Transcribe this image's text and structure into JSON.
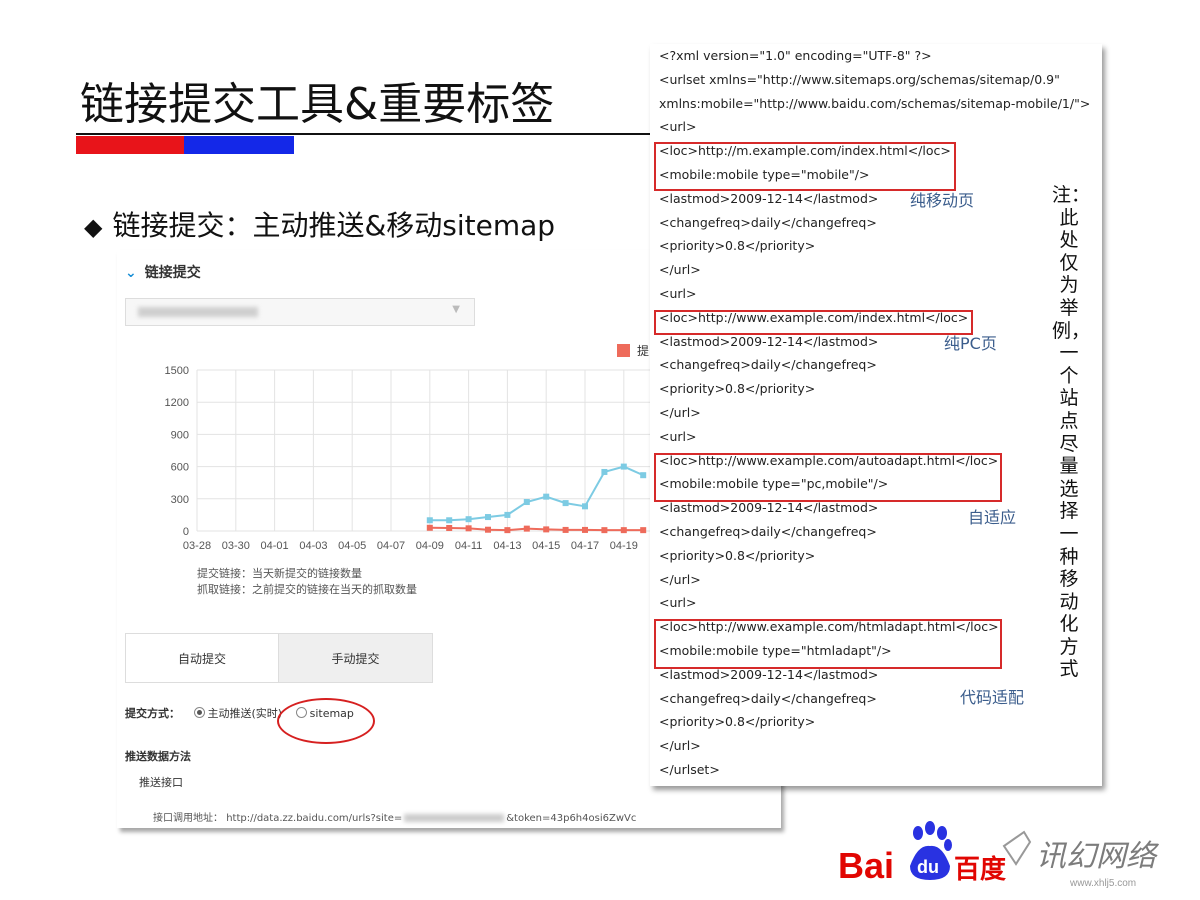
{
  "slide": {
    "title": "链接提交工具&重要标签",
    "bullet_mark": "◆",
    "bullet": "链接提交：主动推送&移动sitemap"
  },
  "panel": {
    "title": "链接提交",
    "legend_label": "提",
    "notes": [
      "提交链接：当天新提交的链接数量",
      "抓取链接：之前提交的链接在当天的抓取数量"
    ],
    "tabs": [
      "自动提交",
      "手动提交"
    ],
    "method_label": "提交方式：",
    "option_push": "主动推送(实时)",
    "option_sitemap": "sitemap",
    "push_method": "推送数据方法",
    "push_api": "推送接口",
    "api_label": "接口调用地址：",
    "api_prefix": "http://data.zz.baidu.com/urls?site=",
    "api_suffix": "&token=43p6h4osi6ZwVc"
  },
  "chart_data": {
    "type": "line",
    "categories": [
      "03-28",
      "03-29",
      "03-30",
      "03-31",
      "04-01",
      "04-02",
      "04-03",
      "04-04",
      "04-05",
      "04-06",
      "04-07",
      "04-08",
      "04-09",
      "04-10",
      "04-11",
      "04-12",
      "04-13",
      "04-14",
      "04-15",
      "04-16",
      "04-17",
      "04-18",
      "04-19",
      "04-20"
    ],
    "tick_labels": [
      "03-28",
      "03-30",
      "04-01",
      "04-03",
      "04-05",
      "04-07",
      "04-09",
      "04-11",
      "04-13",
      "04-15",
      "04-17",
      "04-19"
    ],
    "y_ticks": [
      "0",
      "300",
      "600",
      "900",
      "1200",
      "1500"
    ],
    "ylim": [
      0,
      1500
    ],
    "series": [
      {
        "name": "提交链接",
        "color": "#7dcbe3",
        "values": [
          null,
          null,
          null,
          null,
          null,
          null,
          null,
          null,
          null,
          null,
          null,
          null,
          100,
          100,
          110,
          130,
          150,
          270,
          320,
          260,
          230,
          550,
          600,
          520
        ]
      },
      {
        "name": "抓取链接",
        "color": "#ee6b5b",
        "values": [
          null,
          null,
          null,
          null,
          null,
          null,
          null,
          null,
          null,
          null,
          null,
          null,
          30,
          28,
          25,
          12,
          8,
          22,
          15,
          10,
          10,
          8,
          8,
          8
        ]
      }
    ]
  },
  "xml": {
    "lines": [
      "<?xml version=\"1.0\" encoding=\"UTF-8\" ?>",
      "<urlset xmlns=\"http://www.sitemaps.org/schemas/sitemap/0.9\"",
      "xmlns:mobile=\"http://www.baidu.com/schemas/sitemap-mobile/1/\">",
      "<url>",
      "<loc>http://m.example.com/index.html</loc>",
      "<mobile:mobile type=\"mobile\"/>",
      "<lastmod>2009-12-14</lastmod>",
      "<changefreq>daily</changefreq>",
      "<priority>0.8</priority>",
      "</url>",
      "<url>",
      "<loc>http://www.example.com/index.html</loc>",
      "<lastmod>2009-12-14</lastmod>",
      "<changefreq>daily</changefreq>",
      "<priority>0.8</priority>",
      "</url>",
      "<url>",
      "<loc>http://www.example.com/autoadapt.html</loc>",
      "<mobile:mobile type=\"pc,mobile\"/>",
      "<lastmod>2009-12-14</lastmod>",
      "<changefreq>daily</changefreq>",
      "<priority>0.8</priority>",
      "</url>",
      "<url>",
      "<loc>http://www.example.com/htmladapt.html</loc>",
      "<mobile:mobile type=\"htmladapt\"/>",
      "<lastmod>2009-12-14</lastmod>",
      "<changefreq>daily</changefreq>",
      "<priority>0.8</priority>",
      "</url>",
      "</urlset>"
    ],
    "labels": [
      "纯移动页",
      "纯PC页",
      "自适应",
      "代码适配"
    ]
  },
  "note": "注：此处仅为举例，一个站点尽量选择一种移动化方式",
  "logo": {
    "baidu_left": "Bai",
    "baidu_paw": "du",
    "baidu_cn": "百度",
    "watermark": "讯幻网络",
    "watermark_url": "www.xhlj5.com"
  }
}
